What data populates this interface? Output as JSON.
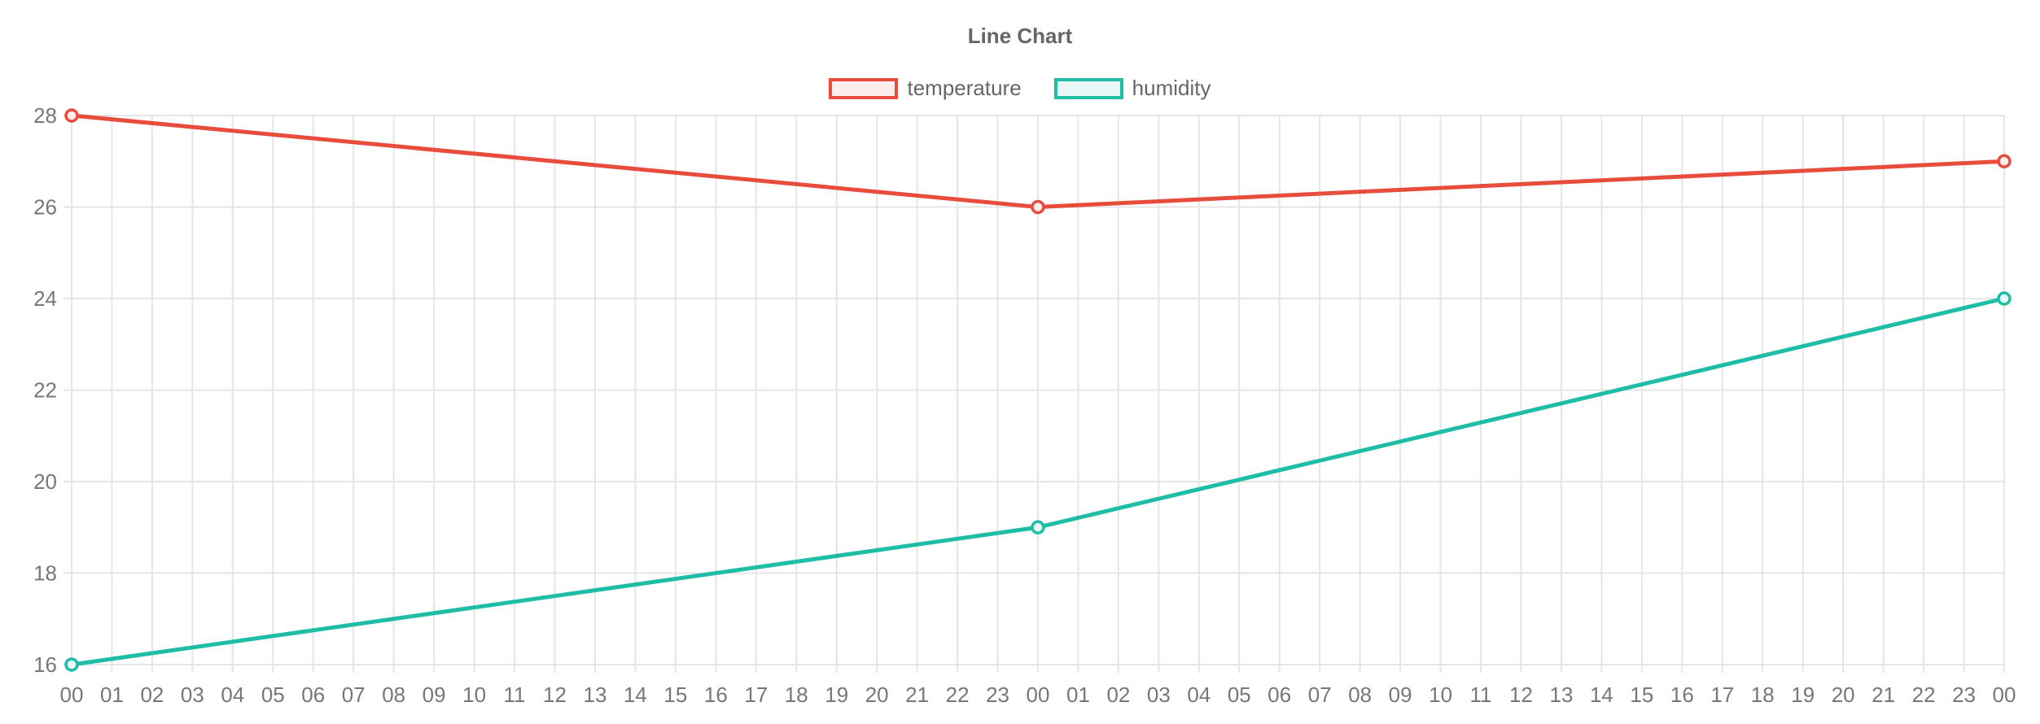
{
  "chart": {
    "title": "Line Chart",
    "legend": [
      {
        "label": "temperature",
        "color": "#e74c3c"
      },
      {
        "label": "humidity",
        "color": "#1fbda6"
      }
    ]
  },
  "chart_data": {
    "type": "line",
    "title": "Line Chart",
    "categories": [
      "00",
      "01",
      "02",
      "03",
      "04",
      "05",
      "06",
      "07",
      "08",
      "09",
      "10",
      "11",
      "12",
      "13",
      "14",
      "15",
      "16",
      "17",
      "18",
      "19",
      "20",
      "21",
      "22",
      "23",
      "00",
      "01",
      "02",
      "03",
      "04",
      "05",
      "06",
      "07",
      "08",
      "09",
      "10",
      "11",
      "12",
      "13",
      "14",
      "15",
      "16",
      "17",
      "18",
      "19",
      "20",
      "21",
      "22",
      "23",
      "00"
    ],
    "series": [
      {
        "name": "temperature",
        "color": "#e74c3c",
        "points": [
          {
            "category": "00",
            "index": 0,
            "value": 28
          },
          {
            "category": "00",
            "index": 24,
            "value": 26
          },
          {
            "category": "00",
            "index": 48,
            "value": 27
          }
        ]
      },
      {
        "name": "humidity",
        "color": "#1fbda6",
        "points": [
          {
            "category": "00",
            "index": 0,
            "value": 16
          },
          {
            "category": "00",
            "index": 24,
            "value": 19
          },
          {
            "category": "00",
            "index": 48,
            "value": 24
          }
        ]
      }
    ],
    "xlabel": "",
    "ylabel": "",
    "ylim": [
      16,
      28
    ],
    "yticks": [
      16,
      18,
      20,
      22,
      24,
      26,
      28
    ],
    "grid": true,
    "grid_color": "#e5e5e5",
    "tick_color": "#777777",
    "legend_position": "top",
    "marker": "open-circle"
  }
}
